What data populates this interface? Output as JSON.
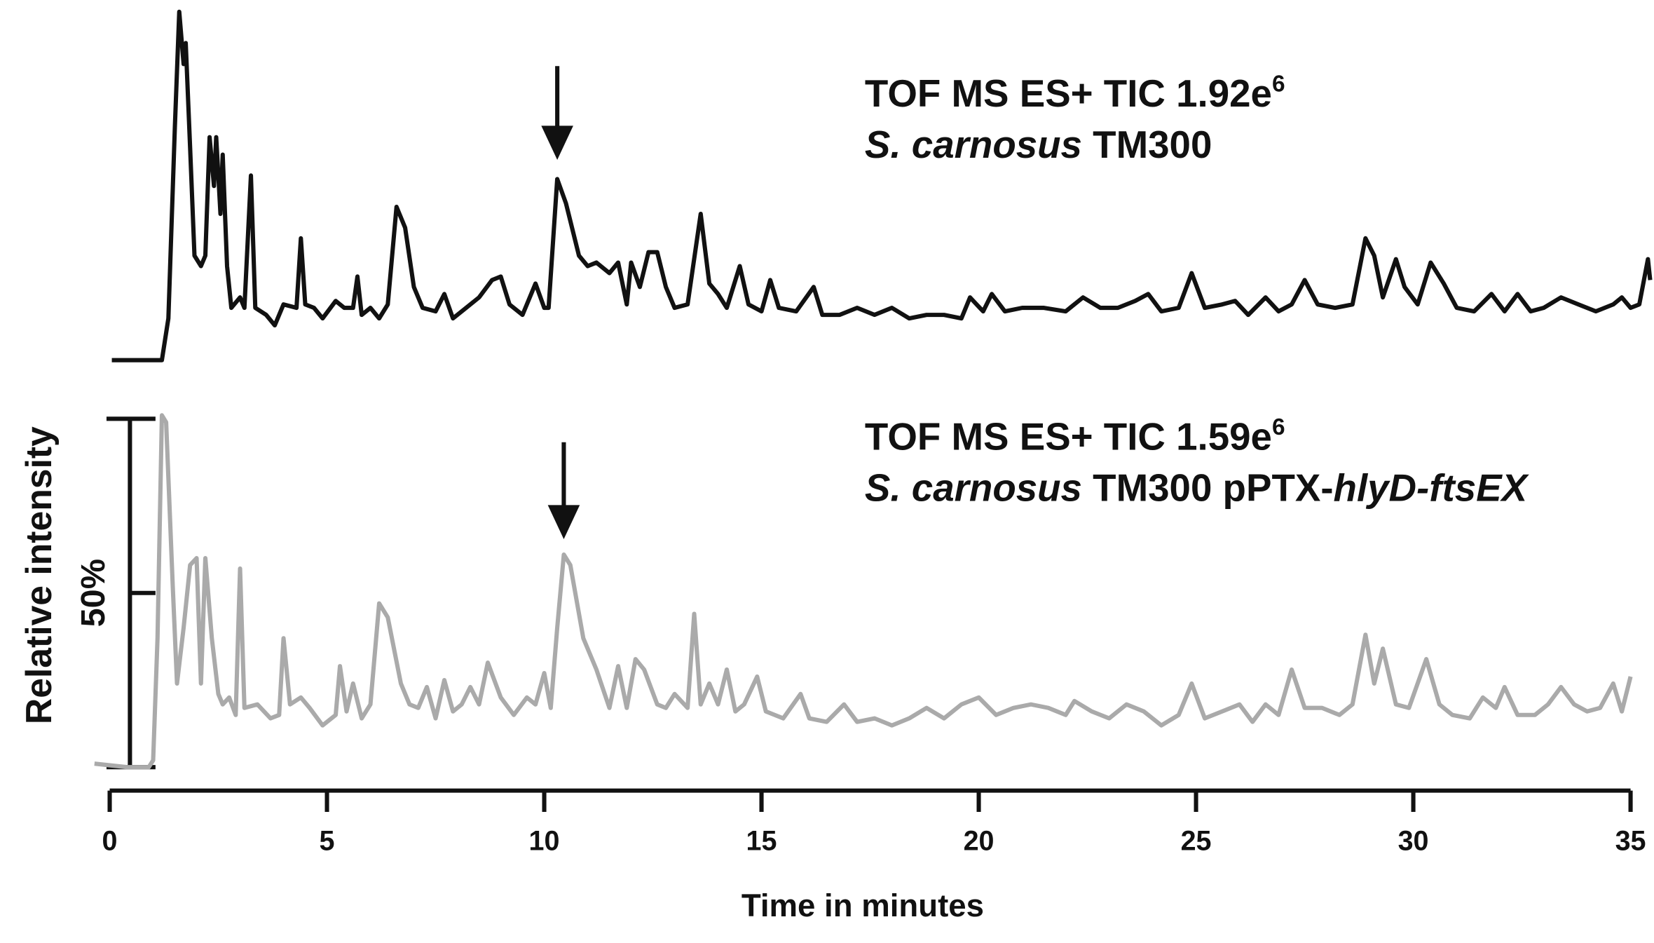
{
  "chart_data": {
    "type": "line",
    "x_label": "Time in minutes",
    "y_label": "Relative intensity",
    "xlim": [
      0,
      35
    ],
    "xticks": [
      0,
      5,
      10,
      15,
      20,
      25,
      30,
      35
    ],
    "ylim": [
      0,
      100
    ],
    "yticks": [
      {
        "value": 50,
        "label": "50%"
      }
    ],
    "series": [
      {
        "color": "#111111",
        "arrow_x": 10.3,
        "label_lines": [
          [
            {
              "text": "TOF MS ES+ TIC 1.92e"
            },
            {
              "text": "6",
              "sup": true
            }
          ],
          [
            {
              "text": "S. carnosus",
              "italic": true
            },
            {
              "text": " TM300"
            }
          ]
        ],
        "x": [
          0.05,
          1.2,
          1.35,
          1.5,
          1.6,
          1.7,
          1.75,
          1.85,
          1.95,
          2.1,
          2.2,
          2.3,
          2.4,
          2.45,
          2.55,
          2.6,
          2.7,
          2.8,
          3.0,
          3.1,
          3.25,
          3.35,
          3.6,
          3.8,
          4.0,
          4.3,
          4.4,
          4.5,
          4.7,
          4.9,
          5.2,
          5.4,
          5.6,
          5.7,
          5.8,
          6.0,
          6.2,
          6.4,
          6.6,
          6.8,
          7.0,
          7.2,
          7.5,
          7.7,
          7.9,
          8.2,
          8.5,
          8.8,
          9.0,
          9.2,
          9.5,
          9.8,
          10.0,
          10.1,
          10.3,
          10.5,
          10.8,
          11.0,
          11.2,
          11.5,
          11.7,
          11.9,
          12.0,
          12.2,
          12.4,
          12.6,
          12.8,
          13.0,
          13.3,
          13.6,
          13.8,
          14.0,
          14.2,
          14.5,
          14.7,
          15.0,
          15.2,
          15.4,
          15.8,
          16.2,
          16.4,
          16.8,
          17.2,
          17.6,
          18.0,
          18.4,
          18.8,
          19.2,
          19.6,
          19.8,
          20.1,
          20.3,
          20.6,
          21.0,
          21.5,
          22.0,
          22.4,
          22.8,
          23.2,
          23.6,
          23.9,
          24.2,
          24.6,
          24.9,
          25.2,
          25.6,
          25.9,
          26.2,
          26.6,
          26.9,
          27.2,
          27.5,
          27.8,
          28.2,
          28.6,
          28.9,
          29.1,
          29.3,
          29.6,
          29.8,
          30.1,
          30.4,
          30.7,
          31.0,
          31.4,
          31.8,
          32.1,
          32.4,
          32.7,
          33.0,
          33.4,
          33.8,
          34.2,
          34.6,
          34.8,
          35.0,
          35.2,
          35.4,
          35.45
        ],
        "values": [
          0,
          0,
          12,
          67,
          100,
          85,
          91,
          61,
          30,
          27,
          30,
          64,
          50,
          64,
          42,
          59,
          27,
          15,
          18,
          15,
          53,
          15,
          13,
          10,
          16,
          15,
          35,
          16,
          15,
          12,
          17,
          15,
          15,
          24,
          13,
          15,
          12,
          16,
          44,
          38,
          21,
          15,
          14,
          19,
          12,
          15,
          18,
          23,
          24,
          16,
          13,
          22,
          15,
          15,
          52,
          45,
          30,
          27,
          28,
          25,
          28,
          16,
          28,
          21,
          31,
          31,
          21,
          15,
          16,
          42,
          22,
          19,
          15,
          27,
          16,
          14,
          23,
          15,
          14,
          21,
          13,
          13,
          15,
          13,
          15,
          12,
          13,
          13,
          12,
          18,
          14,
          19,
          14,
          15,
          15,
          14,
          18,
          15,
          15,
          17,
          19,
          14,
          15,
          25,
          15,
          16,
          17,
          13,
          18,
          14,
          16,
          23,
          16,
          15,
          16,
          35,
          30,
          18,
          29,
          21,
          16,
          28,
          22,
          15,
          14,
          19,
          14,
          19,
          14,
          15,
          18,
          16,
          14,
          16,
          18,
          15,
          16,
          29,
          23
        ]
      },
      {
        "color": "#aaaaaa",
        "arrow_x": 10.45,
        "label_lines": [
          [
            {
              "text": "TOF MS ES+ TIC 1.59e"
            },
            {
              "text": "6",
              "sup": true
            }
          ],
          [
            {
              "text": "S. carnosus",
              "italic": true
            },
            {
              "text": " TM300 pPTX-"
            },
            {
              "text": "hlyD-ftsEX",
              "italic": true
            }
          ]
        ],
        "x": [
          -0.35,
          0.4,
          0.9,
          1.0,
          1.1,
          1.2,
          1.3,
          1.45,
          1.55,
          1.7,
          1.85,
          2.0,
          2.1,
          2.2,
          2.35,
          2.5,
          2.6,
          2.75,
          2.9,
          3.0,
          3.1,
          3.4,
          3.7,
          3.9,
          4.0,
          4.15,
          4.4,
          4.6,
          4.9,
          5.2,
          5.3,
          5.45,
          5.6,
          5.8,
          6.0,
          6.2,
          6.4,
          6.7,
          6.9,
          7.1,
          7.3,
          7.5,
          7.7,
          7.9,
          8.1,
          8.3,
          8.5,
          8.7,
          9.0,
          9.3,
          9.6,
          9.8,
          10.0,
          10.15,
          10.3,
          10.45,
          10.6,
          10.9,
          11.2,
          11.5,
          11.7,
          11.9,
          12.1,
          12.3,
          12.6,
          12.8,
          13.0,
          13.3,
          13.45,
          13.6,
          13.8,
          14.0,
          14.2,
          14.4,
          14.6,
          14.9,
          15.1,
          15.5,
          15.9,
          16.1,
          16.5,
          16.9,
          17.2,
          17.6,
          18.0,
          18.4,
          18.8,
          19.2,
          19.6,
          20.0,
          20.4,
          20.8,
          21.2,
          21.6,
          22.0,
          22.2,
          22.6,
          23.0,
          23.4,
          23.8,
          24.2,
          24.6,
          24.9,
          25.2,
          25.6,
          26.0,
          26.3,
          26.6,
          26.9,
          27.2,
          27.5,
          27.9,
          28.3,
          28.6,
          28.9,
          29.1,
          29.3,
          29.6,
          29.9,
          30.3,
          30.6,
          30.9,
          31.3,
          31.6,
          31.9,
          32.1,
          32.4,
          32.8,
          33.1,
          33.4,
          33.7,
          34.0,
          34.3,
          34.6,
          34.8,
          35.0
        ],
        "values": [
          1,
          0,
          0,
          2,
          37,
          101,
          99,
          52,
          24,
          40,
          58,
          60,
          24,
          60,
          37,
          21,
          18,
          20,
          15,
          57,
          17,
          18,
          14,
          15,
          37,
          18,
          20,
          17,
          12,
          15,
          29,
          16,
          24,
          14,
          18,
          47,
          43,
          24,
          18,
          17,
          23,
          14,
          25,
          16,
          18,
          23,
          18,
          30,
          20,
          15,
          20,
          18,
          27,
          17,
          40,
          61,
          58,
          37,
          28,
          17,
          29,
          17,
          31,
          28,
          18,
          17,
          21,
          17,
          44,
          18,
          24,
          18,
          28,
          16,
          18,
          26,
          16,
          14,
          21,
          14,
          13,
          18,
          13,
          14,
          12,
          14,
          17,
          14,
          18,
          20,
          15,
          17,
          18,
          17,
          15,
          19,
          16,
          14,
          18,
          16,
          12,
          15,
          24,
          14,
          16,
          18,
          13,
          18,
          15,
          28,
          17,
          17,
          15,
          18,
          38,
          24,
          34,
          18,
          17,
          31,
          18,
          15,
          14,
          20,
          17,
          23,
          15,
          15,
          18,
          23,
          18,
          16,
          17,
          24,
          16,
          26
        ]
      }
    ]
  }
}
